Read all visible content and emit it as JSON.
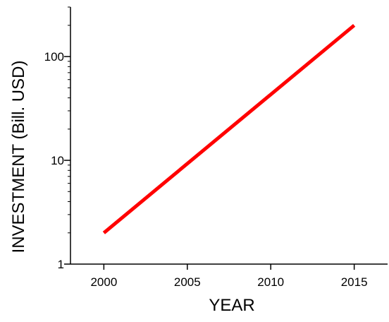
{
  "chart_data": {
    "type": "line",
    "title": "",
    "xlabel": "YEAR",
    "ylabel": "INVESTMENT (Bill. USD)",
    "xscale": "linear",
    "yscale": "log",
    "xlim": [
      1998,
      2017
    ],
    "ylim": [
      1,
      300
    ],
    "xticks": [
      2000,
      2005,
      2010,
      2015
    ],
    "xtick_labels": [
      "2000",
      "2005",
      "2010",
      "2015"
    ],
    "yticks": [
      1,
      10,
      100
    ],
    "ytick_labels": [
      "1",
      "10",
      "100"
    ],
    "grid": false,
    "legend": "none",
    "series": [
      {
        "color": "#ff0000",
        "x": [
          2000,
          2015
        ],
        "y": [
          2,
          200
        ]
      }
    ]
  }
}
